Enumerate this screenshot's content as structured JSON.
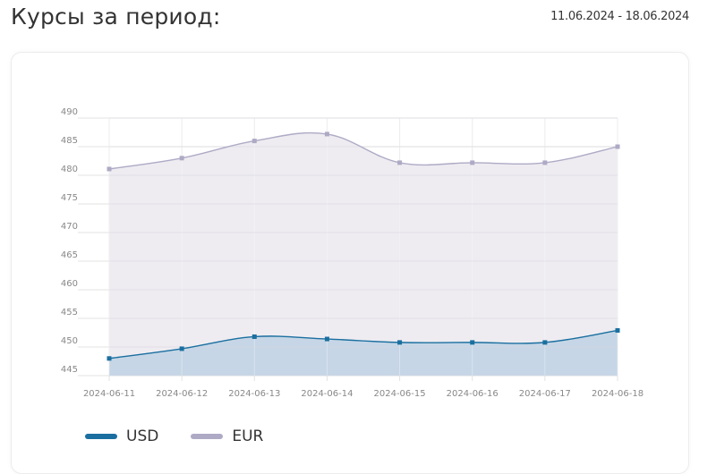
{
  "header": {
    "title": "Курсы за период:",
    "date_range": "11.06.2024 - 18.06.2024"
  },
  "chart_data": {
    "type": "area",
    "categories": [
      "2024-06-11",
      "2024-06-12",
      "2024-06-13",
      "2024-06-14",
      "2024-06-15",
      "2024-06-16",
      "2024-06-17",
      "2024-06-18"
    ],
    "series": [
      {
        "name": "USD",
        "color": "#1a6fa0",
        "fill": "#c3d5e5",
        "values": [
          448.0,
          449.7,
          451.8,
          451.4,
          450.8,
          450.8,
          450.8,
          452.9
        ]
      },
      {
        "name": "EUR",
        "color": "#aeaac5",
        "fill": "#eceaf0",
        "values": [
          481.1,
          483.0,
          486.0,
          487.2,
          482.2,
          482.2,
          482.2,
          485.0
        ]
      }
    ],
    "ylim": [
      445,
      490
    ],
    "yticks": [
      490,
      485,
      480,
      475,
      470,
      465,
      460,
      455,
      450,
      445
    ],
    "grid": true,
    "legend_position": "bottom-left"
  }
}
